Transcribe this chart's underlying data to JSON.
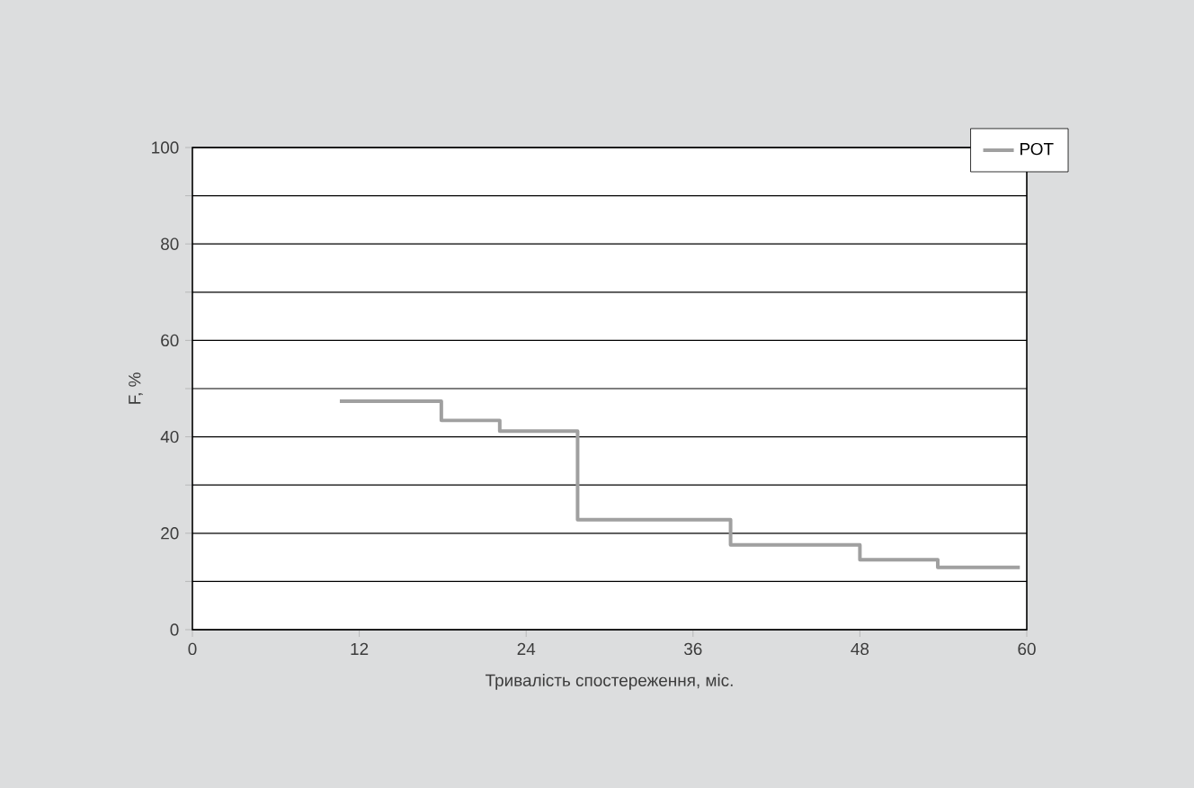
{
  "chart_data": {
    "type": "step",
    "xlabel": "Тривалість спостереження, міс.",
    "ylabel": "F, %",
    "x": [
      10.6,
      17.9,
      22.1,
      27.7,
      38.7,
      48,
      53.6,
      59.5
    ],
    "series": [
      {
        "name": "РОТ",
        "color": "#a0a0a0",
        "values": [
          47.4,
          43.4,
          41.2,
          22.8,
          17.6,
          14.5,
          12.9,
          12.9
        ]
      }
    ],
    "xlim": [
      0,
      60
    ],
    "xticks": [
      0,
      12,
      24,
      36,
      48,
      60
    ],
    "ylim": [
      0,
      100
    ],
    "yticks": [
      0,
      {
        "value": 10,
        "label": null
      },
      20,
      {
        "value": 30,
        "label": null
      },
      40,
      {
        "value": 50,
        "label": null
      },
      60,
      {
        "value": 70,
        "label": null
      },
      80,
      {
        "value": 90,
        "label": null
      },
      100
    ],
    "grid": "y",
    "legend": "top right",
    "marker": "none",
    "line_style": "solid"
  }
}
